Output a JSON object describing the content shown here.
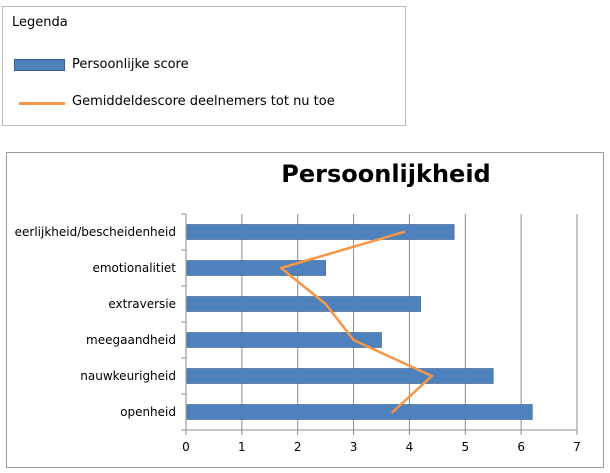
{
  "legend": {
    "title": "Legenda",
    "bar_label": "Persoonlijke score",
    "line_label": "Gemiddeldescore deelnemers tot nu toe"
  },
  "colors": {
    "bar": "#4f81bd",
    "bar_border": "#385d8a",
    "line": "#f79646",
    "grid": "#8c8c8c"
  },
  "chart_data": {
    "type": "bar",
    "orientation": "horizontal",
    "title": "Persoonlijkheid",
    "xlabel": "",
    "ylabel": "",
    "xlim": [
      0,
      7
    ],
    "x_ticks": [
      0,
      1,
      2,
      3,
      4,
      5,
      6,
      7
    ],
    "grid": "vertical",
    "legend_position": "top (separate box)",
    "categories": [
      "eerlijkheid/bescheidenheid",
      "emotionalitiet",
      "extraversie",
      "meegaandheid",
      "nauwkeurigheid",
      "openheid"
    ],
    "series": [
      {
        "name": "Persoonlijke score",
        "type": "bar",
        "values": [
          4.8,
          2.5,
          4.2,
          3.5,
          5.5,
          6.2
        ]
      },
      {
        "name": "Gemiddeldescore deelnemers tot nu toe",
        "type": "line",
        "values": [
          3.9,
          1.7,
          2.5,
          3.0,
          4.4,
          3.7
        ]
      }
    ]
  }
}
